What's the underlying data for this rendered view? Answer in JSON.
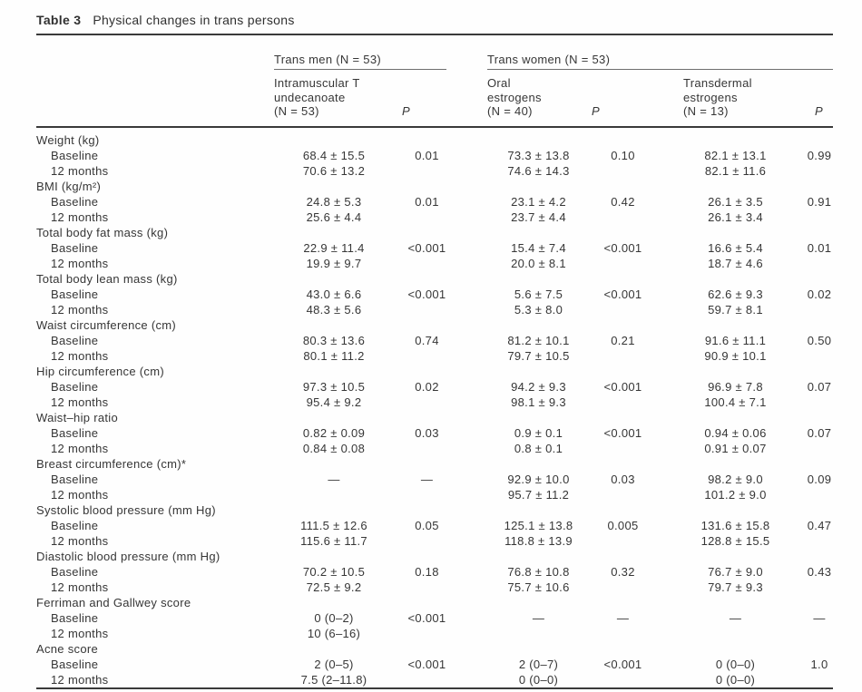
{
  "table": {
    "title_label": "Table 3",
    "title_text": "Physical changes in trans persons",
    "groups": [
      {
        "label": "Trans men (N = 53)"
      },
      {
        "label": "Trans women (N = 53)"
      }
    ],
    "columns": [
      {
        "lines": [
          "Intramuscular T",
          "undecanoate",
          "(N = 53)"
        ]
      },
      {
        "label": "P"
      },
      {
        "lines": [
          "Oral",
          "estrogens",
          "(N = 40)"
        ]
      },
      {
        "label": "P"
      },
      {
        "lines": [
          "Transdermal",
          "estrogens",
          "(N = 13)"
        ]
      },
      {
        "label": "P"
      }
    ],
    "rows": [
      {
        "section": true,
        "label": "Weight (kg)"
      },
      {
        "label": "Baseline",
        "cells": [
          "68.4 ± 15.5",
          "0.01",
          "73.3 ± 13.8",
          "0.10",
          "82.1 ± 13.1",
          "0.99"
        ]
      },
      {
        "label": "12 months",
        "cells": [
          "70.6 ± 13.2",
          "",
          "74.6 ± 14.3",
          "",
          "82.1 ± 11.6",
          ""
        ]
      },
      {
        "section": true,
        "label": "BMI (kg/m²)"
      },
      {
        "label": "Baseline",
        "cells": [
          "24.8 ± 5.3",
          "0.01",
          "23.1 ± 4.2",
          "0.42",
          "26.1 ± 3.5",
          "0.91"
        ]
      },
      {
        "label": "12 months",
        "cells": [
          "25.6 ± 4.4",
          "",
          "23.7 ± 4.4",
          "",
          "26.1 ± 3.4",
          ""
        ]
      },
      {
        "section": true,
        "label": "Total body fat mass (kg)"
      },
      {
        "label": "Baseline",
        "cells": [
          "22.9 ± 11.4",
          "<0.001",
          "15.4 ± 7.4",
          "<0.001",
          "16.6 ± 5.4",
          "0.01"
        ]
      },
      {
        "label": "12 months",
        "cells": [
          "19.9 ± 9.7",
          "",
          "20.0 ± 8.1",
          "",
          "18.7 ± 4.6",
          ""
        ]
      },
      {
        "section": true,
        "label": "Total body lean mass (kg)"
      },
      {
        "label": "Baseline",
        "cells": [
          "43.0 ± 6.6",
          "<0.001",
          "5.6 ± 7.5",
          "<0.001",
          "62.6 ± 9.3",
          "0.02"
        ]
      },
      {
        "label": "12 months",
        "cells": [
          "48.3 ± 5.6",
          "",
          "5.3 ± 8.0",
          "",
          "59.7 ± 8.1",
          ""
        ]
      },
      {
        "section": true,
        "label": "Waist circumference (cm)"
      },
      {
        "label": "Baseline",
        "cells": [
          "80.3 ± 13.6",
          "0.74",
          "81.2 ± 10.1",
          "0.21",
          "91.6 ± 11.1",
          "0.50"
        ]
      },
      {
        "label": "12 months",
        "cells": [
          "80.1 ± 11.2",
          "",
          "79.7 ± 10.5",
          "",
          "90.9 ± 10.1",
          ""
        ]
      },
      {
        "section": true,
        "label": "Hip circumference (cm)"
      },
      {
        "label": "Baseline",
        "cells": [
          "97.3 ± 10.5",
          "0.02",
          "94.2 ± 9.3",
          "<0.001",
          "96.9 ± 7.8",
          "0.07"
        ]
      },
      {
        "label": "12 months",
        "cells": [
          "95.4 ± 9.2",
          "",
          "98.1 ± 9.3",
          "",
          "100.4 ± 7.1",
          ""
        ]
      },
      {
        "section": true,
        "label": "Waist–hip ratio"
      },
      {
        "label": "Baseline",
        "cells": [
          "0.82 ± 0.09",
          "0.03",
          "0.9 ± 0.1",
          "<0.001",
          "0.94 ± 0.06",
          "0.07"
        ]
      },
      {
        "label": "12 months",
        "cells": [
          "0.84 ± 0.08",
          "",
          "0.8 ± 0.1",
          "",
          "0.91 ± 0.07",
          ""
        ]
      },
      {
        "section": true,
        "label": "Breast circumference (cm)*"
      },
      {
        "label": "Baseline",
        "cells": [
          "—",
          "—",
          "92.9 ± 10.0",
          "0.03",
          "98.2 ± 9.0",
          "0.09"
        ]
      },
      {
        "label": "12 months",
        "cells": [
          "",
          "",
          "95.7 ± 11.2",
          "",
          "101.2 ± 9.0",
          ""
        ]
      },
      {
        "section": true,
        "label": "Systolic blood pressure (mm Hg)"
      },
      {
        "label": "Baseline",
        "cells": [
          "111.5 ± 12.6",
          "0.05",
          "125.1 ± 13.8",
          "0.005",
          "131.6 ± 15.8",
          "0.47"
        ]
      },
      {
        "label": "12 months",
        "cells": [
          "115.6 ± 11.7",
          "",
          "118.8 ± 13.9",
          "",
          "128.8 ± 15.5",
          ""
        ]
      },
      {
        "section": true,
        "label": "Diastolic blood pressure (mm Hg)"
      },
      {
        "label": "Baseline",
        "cells": [
          "70.2 ± 10.5",
          "0.18",
          "76.8 ± 10.8",
          "0.32",
          "76.7 ± 9.0",
          "0.43"
        ]
      },
      {
        "label": "12 months",
        "cells": [
          "72.5 ± 9.2",
          "",
          "75.7 ± 10.6",
          "",
          "79.7 ± 9.3",
          ""
        ]
      },
      {
        "section": true,
        "label": "Ferriman and Gallwey score"
      },
      {
        "label": "Baseline",
        "cells": [
          "0 (0–2)",
          "<0.001",
          "—",
          "—",
          "—",
          "—"
        ]
      },
      {
        "label": "12 months",
        "cells": [
          "10 (6–16)",
          "",
          "",
          "",
          "",
          ""
        ]
      },
      {
        "section": true,
        "label": "Acne score"
      },
      {
        "label": "Baseline",
        "cells": [
          "2 (0–5)",
          "<0.001",
          "2 (0–7)",
          "<0.001",
          "0 (0–0)",
          "1.0"
        ]
      },
      {
        "label": "12 months",
        "cells": [
          "7.5 (2–11.8)",
          "",
          "0 (0–0)",
          "",
          "0 (0–0)",
          ""
        ]
      }
    ]
  },
  "colors": {
    "text": "#363636",
    "rule_heavy": "#3a3a3a",
    "rule_light": "#6f6f6f"
  }
}
